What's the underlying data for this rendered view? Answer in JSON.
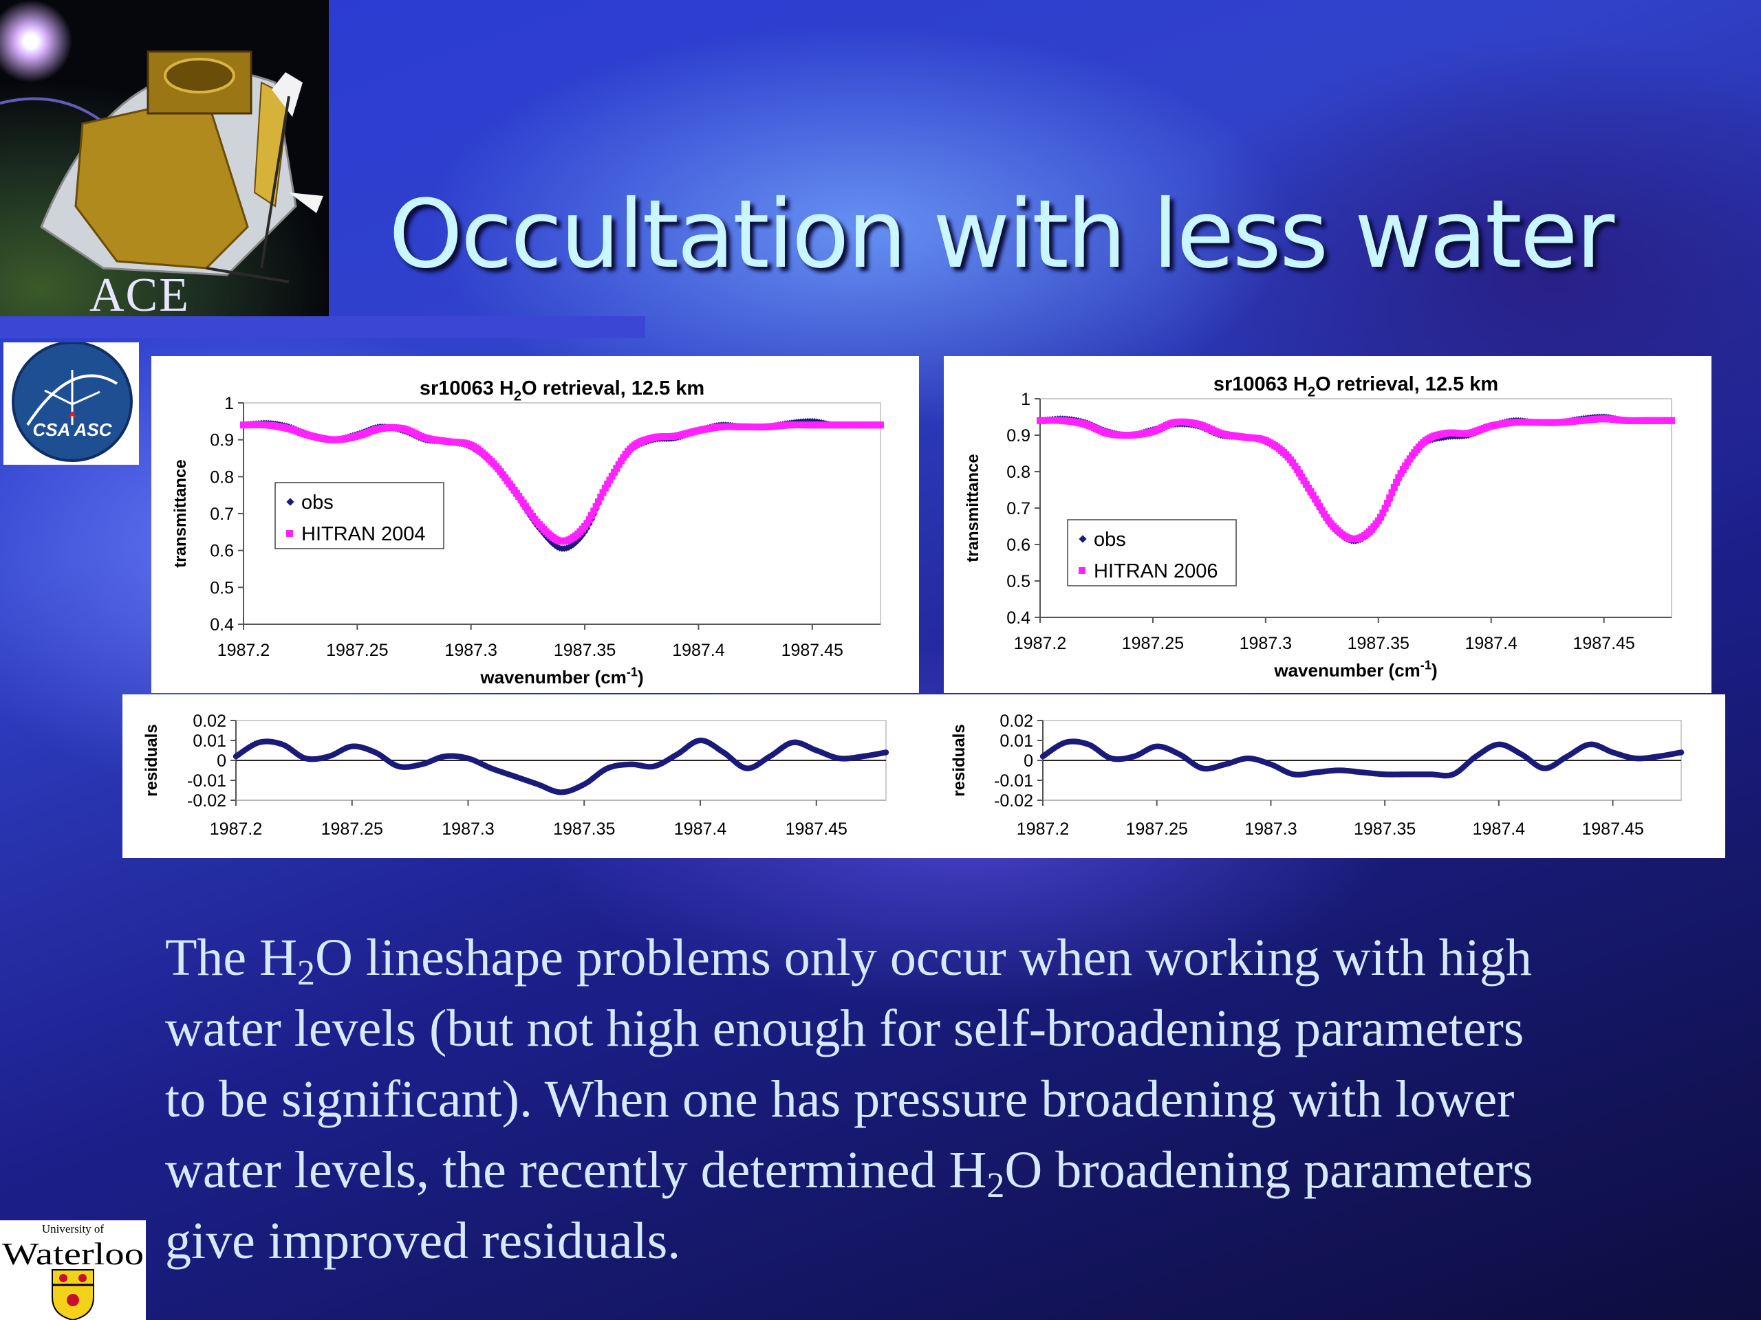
{
  "slide_title": "Occultation with less water",
  "logos": {
    "ace": "ACE",
    "csa": "CSA ASC",
    "waterloo_top": "University of",
    "waterloo_name": "Waterloo"
  },
  "caption": {
    "line1a": "The H",
    "line1sub": "2",
    "line1b": "O lineshape problems only occur when working with high",
    "line2": "water levels (but not high enough for self-broadening parameters",
    "line3": "to be significant).  When one has pressure broadening with lower",
    "line4a": "water levels, the recently determined H",
    "line4sub": "2",
    "line4b": "O broadening parameters",
    "line5": "give improved residuals."
  },
  "chart_data": [
    {
      "type": "scatter",
      "panel": "left-transmittance",
      "title": "sr10063 H2O retrieval, 12.5 km",
      "xlabel": "wavenumber (cm-1)",
      "ylabel": "transmittance",
      "xlim": [
        1987.2,
        1987.48
      ],
      "ylim": [
        0.4,
        1
      ],
      "xticks": [
        "1987.2",
        "1987.25",
        "1987.3",
        "1987.35",
        "1987.4",
        "1987.45"
      ],
      "yticks": [
        "0.4",
        "0.5",
        "0.6",
        "0.7",
        "0.8",
        "0.9",
        "1"
      ],
      "series": [
        {
          "name": "obs",
          "color": "#1a1a7a",
          "x": [
            1987.2,
            1987.21,
            1987.22,
            1987.23,
            1987.24,
            1987.25,
            1987.26,
            1987.27,
            1987.28,
            1987.29,
            1987.3,
            1987.31,
            1987.32,
            1987.33,
            1987.34,
            1987.35,
            1987.36,
            1987.37,
            1987.38,
            1987.39,
            1987.4,
            1987.41,
            1987.42,
            1987.43,
            1987.44,
            1987.45,
            1987.46,
            1987.47,
            1987.48
          ],
          "y": [
            0.94,
            0.945,
            0.935,
            0.91,
            0.9,
            0.915,
            0.935,
            0.925,
            0.9,
            0.895,
            0.88,
            0.83,
            0.75,
            0.66,
            0.605,
            0.65,
            0.78,
            0.87,
            0.9,
            0.905,
            0.925,
            0.94,
            0.935,
            0.935,
            0.945,
            0.95,
            0.94,
            0.94,
            0.94
          ]
        },
        {
          "name": "HITRAN 2004",
          "color": "#ff22ff",
          "x": [
            1987.2,
            1987.21,
            1987.22,
            1987.23,
            1987.24,
            1987.25,
            1987.26,
            1987.27,
            1987.28,
            1987.29,
            1987.3,
            1987.31,
            1987.32,
            1987.33,
            1987.34,
            1987.35,
            1987.36,
            1987.37,
            1987.38,
            1987.39,
            1987.4,
            1987.41,
            1987.42,
            1987.43,
            1987.44,
            1987.45,
            1987.46,
            1987.47,
            1987.48
          ],
          "y": [
            0.94,
            0.94,
            0.93,
            0.91,
            0.9,
            0.91,
            0.93,
            0.93,
            0.905,
            0.895,
            0.885,
            0.835,
            0.755,
            0.67,
            0.625,
            0.665,
            0.78,
            0.875,
            0.905,
            0.91,
            0.925,
            0.935,
            0.935,
            0.935,
            0.94,
            0.94,
            0.94,
            0.94,
            0.94
          ]
        }
      ],
      "legend": "left"
    },
    {
      "type": "scatter",
      "panel": "right-transmittance",
      "title": "sr10063 H2O retrieval, 12.5 km",
      "xlabel": "wavenumber (cm-1)",
      "ylabel": "transmittance",
      "xlim": [
        1987.2,
        1987.48
      ],
      "ylim": [
        0.4,
        1
      ],
      "xticks": [
        "1987.2",
        "1987.25",
        "1987.3",
        "1987.35",
        "1987.4",
        "1987.45"
      ],
      "yticks": [
        "0.4",
        "0.5",
        "0.6",
        "0.7",
        "0.8",
        "0.9",
        "1"
      ],
      "series": [
        {
          "name": "obs",
          "color": "#1a1a7a",
          "x": [
            1987.2,
            1987.21,
            1987.22,
            1987.23,
            1987.24,
            1987.25,
            1987.26,
            1987.27,
            1987.28,
            1987.29,
            1987.3,
            1987.31,
            1987.32,
            1987.33,
            1987.34,
            1987.35,
            1987.36,
            1987.37,
            1987.38,
            1987.39,
            1987.4,
            1987.41,
            1987.42,
            1987.43,
            1987.44,
            1987.45,
            1987.46,
            1987.47,
            1987.48
          ],
          "y": [
            0.94,
            0.945,
            0.935,
            0.91,
            0.9,
            0.915,
            0.93,
            0.925,
            0.9,
            0.895,
            0.885,
            0.84,
            0.74,
            0.645,
            0.61,
            0.66,
            0.79,
            0.875,
            0.895,
            0.9,
            0.925,
            0.94,
            0.935,
            0.935,
            0.945,
            0.95,
            0.94,
            0.94,
            0.94
          ]
        },
        {
          "name": "HITRAN 2006",
          "color": "#ff22ff",
          "x": [
            1987.2,
            1987.21,
            1987.22,
            1987.23,
            1987.24,
            1987.25,
            1987.26,
            1987.27,
            1987.28,
            1987.29,
            1987.3,
            1987.31,
            1987.32,
            1987.33,
            1987.34,
            1987.35,
            1987.36,
            1987.37,
            1987.38,
            1987.39,
            1987.4,
            1987.41,
            1987.42,
            1987.43,
            1987.44,
            1987.45,
            1987.46,
            1987.47,
            1987.48
          ],
          "y": [
            0.94,
            0.94,
            0.93,
            0.905,
            0.9,
            0.91,
            0.935,
            0.93,
            0.905,
            0.895,
            0.885,
            0.84,
            0.745,
            0.65,
            0.615,
            0.665,
            0.795,
            0.88,
            0.905,
            0.905,
            0.925,
            0.935,
            0.935,
            0.935,
            0.94,
            0.945,
            0.94,
            0.94,
            0.94
          ]
        }
      ],
      "legend": "left-center"
    },
    {
      "type": "line",
      "panel": "left-residuals",
      "xlabel": "",
      "ylabel": "residuals",
      "xlim": [
        1987.2,
        1987.48
      ],
      "ylim": [
        -0.02,
        0.02
      ],
      "xticks": [
        "1987.2",
        "1987.25",
        "1987.3",
        "1987.35",
        "1987.4",
        "1987.45"
      ],
      "yticks": [
        "0.02",
        "0.01",
        "0",
        "-0.01",
        "-0.02"
      ],
      "series": [
        {
          "color": "#1a1a7a",
          "x": [
            1987.2,
            1987.21,
            1987.22,
            1987.23,
            1987.24,
            1987.25,
            1987.26,
            1987.27,
            1987.28,
            1987.29,
            1987.3,
            1987.31,
            1987.32,
            1987.33,
            1987.34,
            1987.35,
            1987.36,
            1987.37,
            1987.38,
            1987.39,
            1987.4,
            1987.41,
            1987.42,
            1987.43,
            1987.44,
            1987.45,
            1987.46,
            1987.47,
            1987.48
          ],
          "y": [
            0.002,
            0.009,
            0.008,
            0.001,
            0.002,
            0.007,
            0.004,
            -0.003,
            -0.002,
            0.002,
            0.001,
            -0.004,
            -0.008,
            -0.012,
            -0.016,
            -0.012,
            -0.004,
            -0.002,
            -0.003,
            0.003,
            0.01,
            0.004,
            -0.004,
            0.002,
            0.009,
            0.005,
            0.001,
            0.002,
            0.004
          ]
        }
      ]
    },
    {
      "type": "line",
      "panel": "right-residuals",
      "xlabel": "",
      "ylabel": "residuals",
      "xlim": [
        1987.2,
        1987.48
      ],
      "ylim": [
        -0.02,
        0.02
      ],
      "xticks": [
        "1987.2",
        "1987.25",
        "1987.3",
        "1987.35",
        "1987.4",
        "1987.45"
      ],
      "yticks": [
        "0.02",
        "0.01",
        "0",
        "-0.01",
        "-0.02"
      ],
      "series": [
        {
          "color": "#1a1a7a",
          "x": [
            1987.2,
            1987.21,
            1987.22,
            1987.23,
            1987.24,
            1987.25,
            1987.26,
            1987.27,
            1987.28,
            1987.29,
            1987.3,
            1987.31,
            1987.32,
            1987.33,
            1987.34,
            1987.35,
            1987.36,
            1987.37,
            1987.38,
            1987.39,
            1987.4,
            1987.41,
            1987.42,
            1987.43,
            1987.44,
            1987.45,
            1987.46,
            1987.47,
            1987.48
          ],
          "y": [
            0.002,
            0.009,
            0.008,
            0.001,
            0.002,
            0.007,
            0.003,
            -0.004,
            -0.002,
            0.001,
            -0.002,
            -0.007,
            -0.006,
            -0.005,
            -0.006,
            -0.007,
            -0.007,
            -0.007,
            -0.007,
            0.002,
            0.008,
            0.003,
            -0.004,
            0.002,
            0.008,
            0.004,
            0.001,
            0.002,
            0.004
          ]
        }
      ]
    }
  ]
}
